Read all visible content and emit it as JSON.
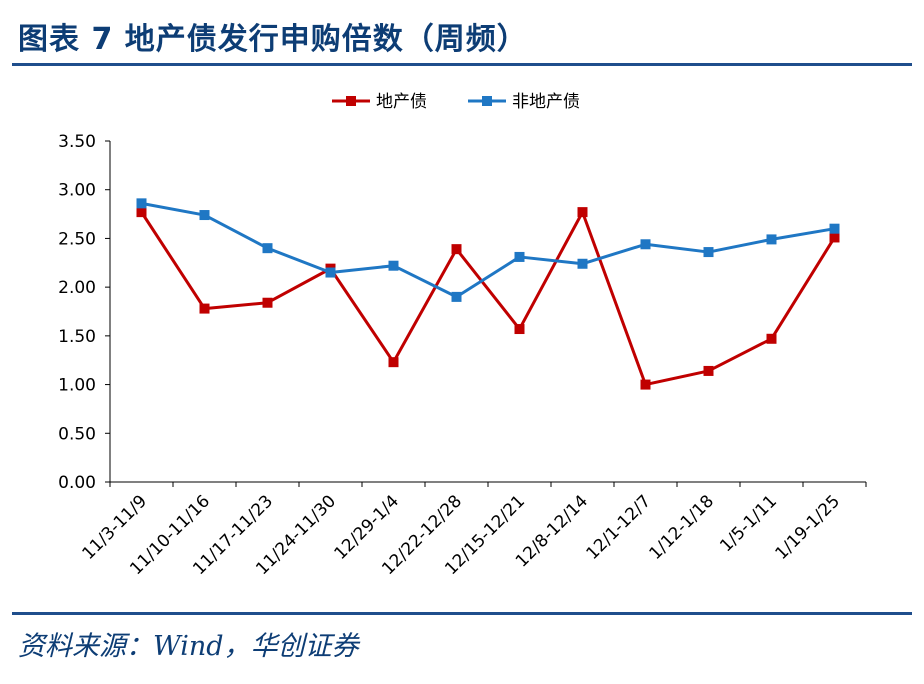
{
  "header": {
    "title": "图表 7   地产债发行申购倍数（周频）"
  },
  "footer": {
    "source": "资料来源：Wind，华创证券"
  },
  "chart_data": {
    "type": "line",
    "categories": [
      "11/3-11/9",
      "11/10-11/16",
      "11/17-11/23",
      "11/24-11/30",
      "12/29-1/4",
      "12/22-12/28",
      "12/15-12/21",
      "12/8-12/14",
      "12/1-12/7",
      "1/12-1/18",
      "1/5-1/11",
      "1/19-1/25"
    ],
    "series": [
      {
        "name": "地产债",
        "color": "#c00000",
        "marker": "square",
        "values": [
          2.77,
          1.78,
          1.84,
          2.19,
          1.23,
          2.39,
          1.57,
          2.77,
          1.0,
          1.14,
          1.47,
          2.51
        ]
      },
      {
        "name": "非地产债",
        "color": "#1f77c4",
        "marker": "square",
        "values": [
          2.86,
          2.74,
          2.4,
          2.15,
          2.22,
          1.9,
          2.31,
          2.24,
          2.44,
          2.36,
          2.49,
          2.6
        ]
      }
    ],
    "ylim": [
      0,
      3.5
    ],
    "yticks": [
      "0.00",
      "0.50",
      "1.00",
      "1.50",
      "2.00",
      "2.50",
      "3.00",
      "3.50"
    ],
    "legend": "top-center",
    "grid": false
  }
}
